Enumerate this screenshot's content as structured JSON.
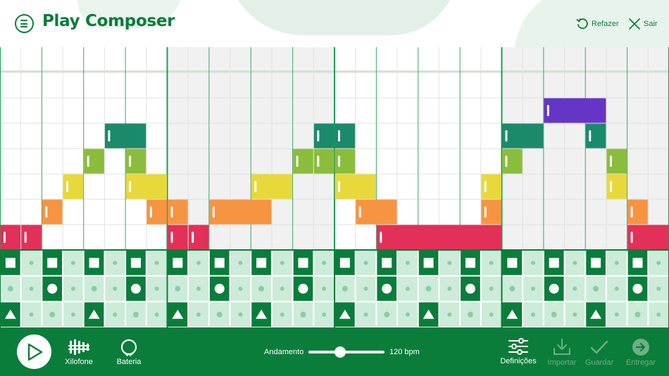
{
  "app": {
    "title": "Play Composer"
  },
  "header": {
    "redo_label": "Refazer",
    "exit_label": "Sair"
  },
  "instruments": {
    "xylophone_label": "Xilofone",
    "drums_label": "Bateria"
  },
  "tempo": {
    "label": "Andamento",
    "value_text": "120 bpm",
    "bpm": 120,
    "fraction": 0.4
  },
  "toolbar": {
    "settings_label": "Definições",
    "import_label": "Importar",
    "save_label": "Guardar",
    "submit_label": "Entregar"
  },
  "colors": {
    "brand_green": "#0a7d3b",
    "note_pitch_colors": [
      "#e23058",
      "#f79442",
      "#e8d83a",
      "#8abd3c",
      "#1b8a6b",
      "#6535c8"
    ],
    "drum_active": "#0a7d3b",
    "drum_inactive": "#cdebd9"
  },
  "composition": {
    "steps": 32,
    "measure_length": 8,
    "pitch_rows": 8,
    "notes": [
      {
        "pitch": 1,
        "start": 0,
        "length": 1
      },
      {
        "pitch": 1,
        "start": 1,
        "length": 1
      },
      {
        "pitch": 2,
        "start": 2,
        "length": 1
      },
      {
        "pitch": 3,
        "start": 3,
        "length": 1
      },
      {
        "pitch": 4,
        "start": 4,
        "length": 1
      },
      {
        "pitch": 5,
        "start": 5,
        "length": 2
      },
      {
        "pitch": 4,
        "start": 6,
        "length": 1
      },
      {
        "pitch": 3,
        "start": 6,
        "length": 2
      },
      {
        "pitch": 2,
        "start": 7,
        "length": 1
      },
      {
        "pitch": 1,
        "start": 8,
        "length": 1
      },
      {
        "pitch": 2,
        "start": 8,
        "length": 1
      },
      {
        "pitch": 1,
        "start": 9,
        "length": 1
      },
      {
        "pitch": 2,
        "start": 10,
        "length": 3
      },
      {
        "pitch": 3,
        "start": 12,
        "length": 2
      },
      {
        "pitch": 4,
        "start": 14,
        "length": 1
      },
      {
        "pitch": 4,
        "start": 15,
        "length": 1
      },
      {
        "pitch": 5,
        "start": 15,
        "length": 1
      },
      {
        "pitch": 4,
        "start": 16,
        "length": 1
      },
      {
        "pitch": 5,
        "start": 16,
        "length": 1
      },
      {
        "pitch": 3,
        "start": 16,
        "length": 2
      },
      {
        "pitch": 2,
        "start": 17,
        "length": 2
      },
      {
        "pitch": 1,
        "start": 18,
        "length": 6
      },
      {
        "pitch": 3,
        "start": 23,
        "length": 1
      },
      {
        "pitch": 2,
        "start": 23,
        "length": 1
      },
      {
        "pitch": 5,
        "start": 24,
        "length": 2
      },
      {
        "pitch": 4,
        "start": 24,
        "length": 1
      },
      {
        "pitch": 6,
        "start": 26,
        "length": 3
      },
      {
        "pitch": 5,
        "start": 28,
        "length": 1
      },
      {
        "pitch": 4,
        "start": 29,
        "length": 1
      },
      {
        "pitch": 3,
        "start": 29,
        "length": 1
      },
      {
        "pitch": 2,
        "start": 30,
        "length": 1
      },
      {
        "pitch": 1,
        "start": 30,
        "length": 2
      }
    ],
    "drums": {
      "square": [
        0,
        2,
        4,
        6,
        8,
        10,
        12,
        14,
        16,
        18,
        20,
        22,
        24,
        26,
        28,
        30
      ],
      "circle": [
        2,
        6,
        10,
        14,
        18,
        22,
        26,
        30
      ],
      "triangle": [
        0,
        4,
        8,
        12,
        16,
        20,
        24,
        28
      ]
    }
  }
}
